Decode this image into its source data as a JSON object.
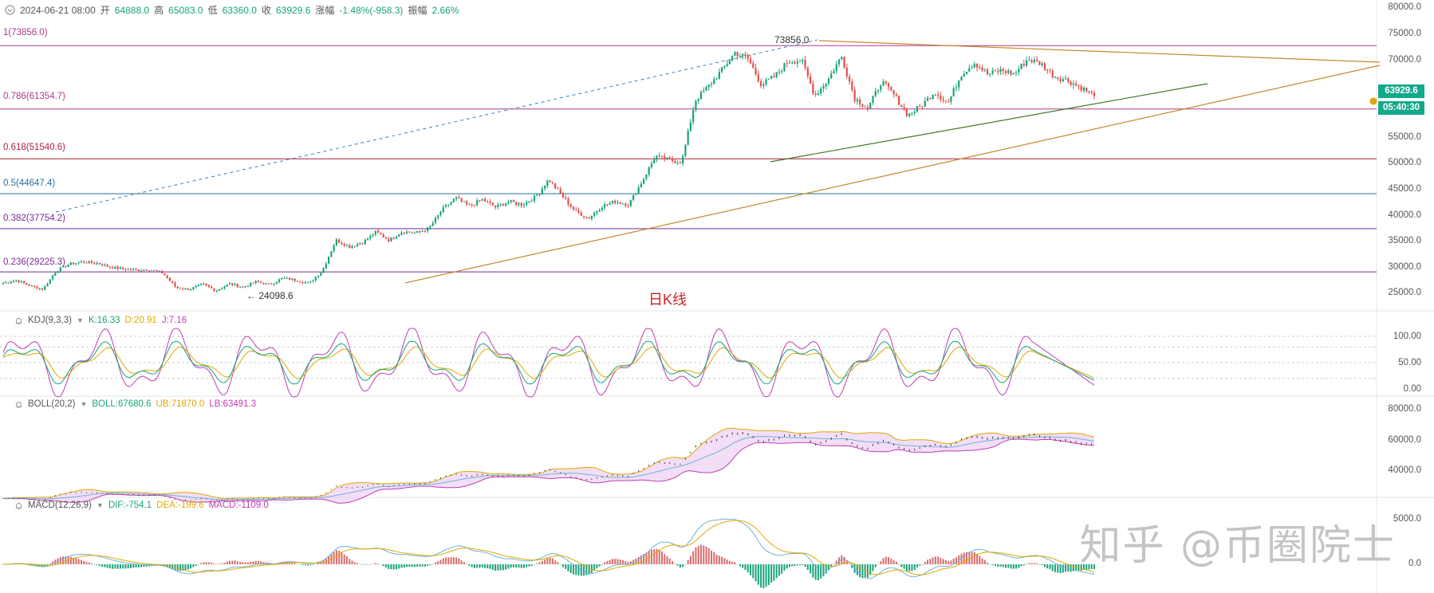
{
  "header": {
    "date": "2024-06-21 08:00",
    "open_label": "开",
    "open": "64888.0",
    "high_label": "高",
    "high": "65083.0",
    "low_label": "低",
    "low": "63360.0",
    "close_label": "收",
    "close": "63929.6",
    "change_label": "涨幅",
    "change": "-1.48%(-958.3)",
    "amplitude_label": "振幅",
    "amplitude": "2.66%"
  },
  "price_axis": {
    "ticks": [
      "80000.0",
      "75000.0",
      "70000.0",
      "55000.0",
      "50000.0",
      "45000.0",
      "40000.0",
      "35000.0",
      "30000.0",
      "25000.0"
    ],
    "last_price": "63929.6",
    "countdown": "05:40:30"
  },
  "fib_levels": [
    {
      "label": "1(73856.0)",
      "value": 73856.0,
      "color": "#b0388f"
    },
    {
      "label": "0.786(61354.7)",
      "value": 61354.7,
      "color": "#b0388f"
    },
    {
      "label": "0.618(51540.6)",
      "value": 51540.6,
      "color": "#b01e3c"
    },
    {
      "label": "0.5(44647.4)",
      "value": 44647.4,
      "color": "#2a6fa0"
    },
    {
      "label": "0.382(37754.2)",
      "value": 37754.2,
      "color": "#7a2a9a"
    },
    {
      "label": "0.236(29225.3)",
      "value": 29225.3,
      "color": "#7a2a9a"
    }
  ],
  "annotations": {
    "high_marker": "73856.0",
    "low_marker": "24098.6",
    "center_label": "日K线"
  },
  "kdj": {
    "title": "KDJ(9,3,3)",
    "k": "K:16.33",
    "d": "D:20.91",
    "j": "J:7.16",
    "k_color": "#1aa37a",
    "d_color": "#e0a800",
    "j_color": "#c03db5",
    "ticks": [
      "100.00",
      "50.00",
      "0.00"
    ]
  },
  "boll": {
    "title": "BOLL(20,2)",
    "boll": "BOLL:67680.6",
    "ub": "UB:71870.0",
    "lb": "LB:63491.3",
    "boll_color": "#1aa37a",
    "ub_color": "#e0a800",
    "lb_color": "#c03db5",
    "ticks": [
      "80000.0",
      "60000.0",
      "40000.0"
    ]
  },
  "macd": {
    "title": "MACD(12,26,9)",
    "dif": "DIF:-754.1",
    "dea": "DEA:-199.6",
    "macd": "MACD:-1109.0",
    "dif_color": "#1aa37a",
    "dea_color": "#e0a800",
    "macd_color": "#c03db5",
    "ticks": [
      "5000.0",
      "0.0"
    ]
  },
  "watermark": "知乎 @币圈院士",
  "chart_data": {
    "type": "candlestick",
    "title": "日K线",
    "price_range": [
      22000,
      81000
    ],
    "up_color": "#1aa37a",
    "down_color": "#e0504a",
    "approx_close_path": [
      27000,
      27600,
      26500,
      25800,
      29500,
      30800,
      31200,
      31000,
      30200,
      29800,
      29600,
      29700,
      29000,
      26100,
      25800,
      26800,
      25500,
      26900,
      26200,
      27300,
      26700,
      28000,
      27600,
      27000,
      29500,
      35500,
      34200,
      35000,
      37100,
      35500,
      37200,
      36900,
      37800,
      41500,
      43800,
      42200,
      43500,
      42000,
      43100,
      42500,
      44000,
      47500,
      44200,
      41200,
      39800,
      42200,
      43100,
      42500,
      47000,
      52000,
      51300,
      50900,
      63000,
      65800,
      69000,
      72500,
      71200,
      66100,
      67800,
      70800,
      71000,
      64000,
      67200,
      71800,
      63500,
      61500,
      66800,
      64000,
      60100,
      62000,
      64800,
      62500,
      68200,
      70500,
      68200,
      69000,
      68300,
      71200,
      70300,
      67800,
      67000,
      65600,
      63929.6
    ]
  }
}
